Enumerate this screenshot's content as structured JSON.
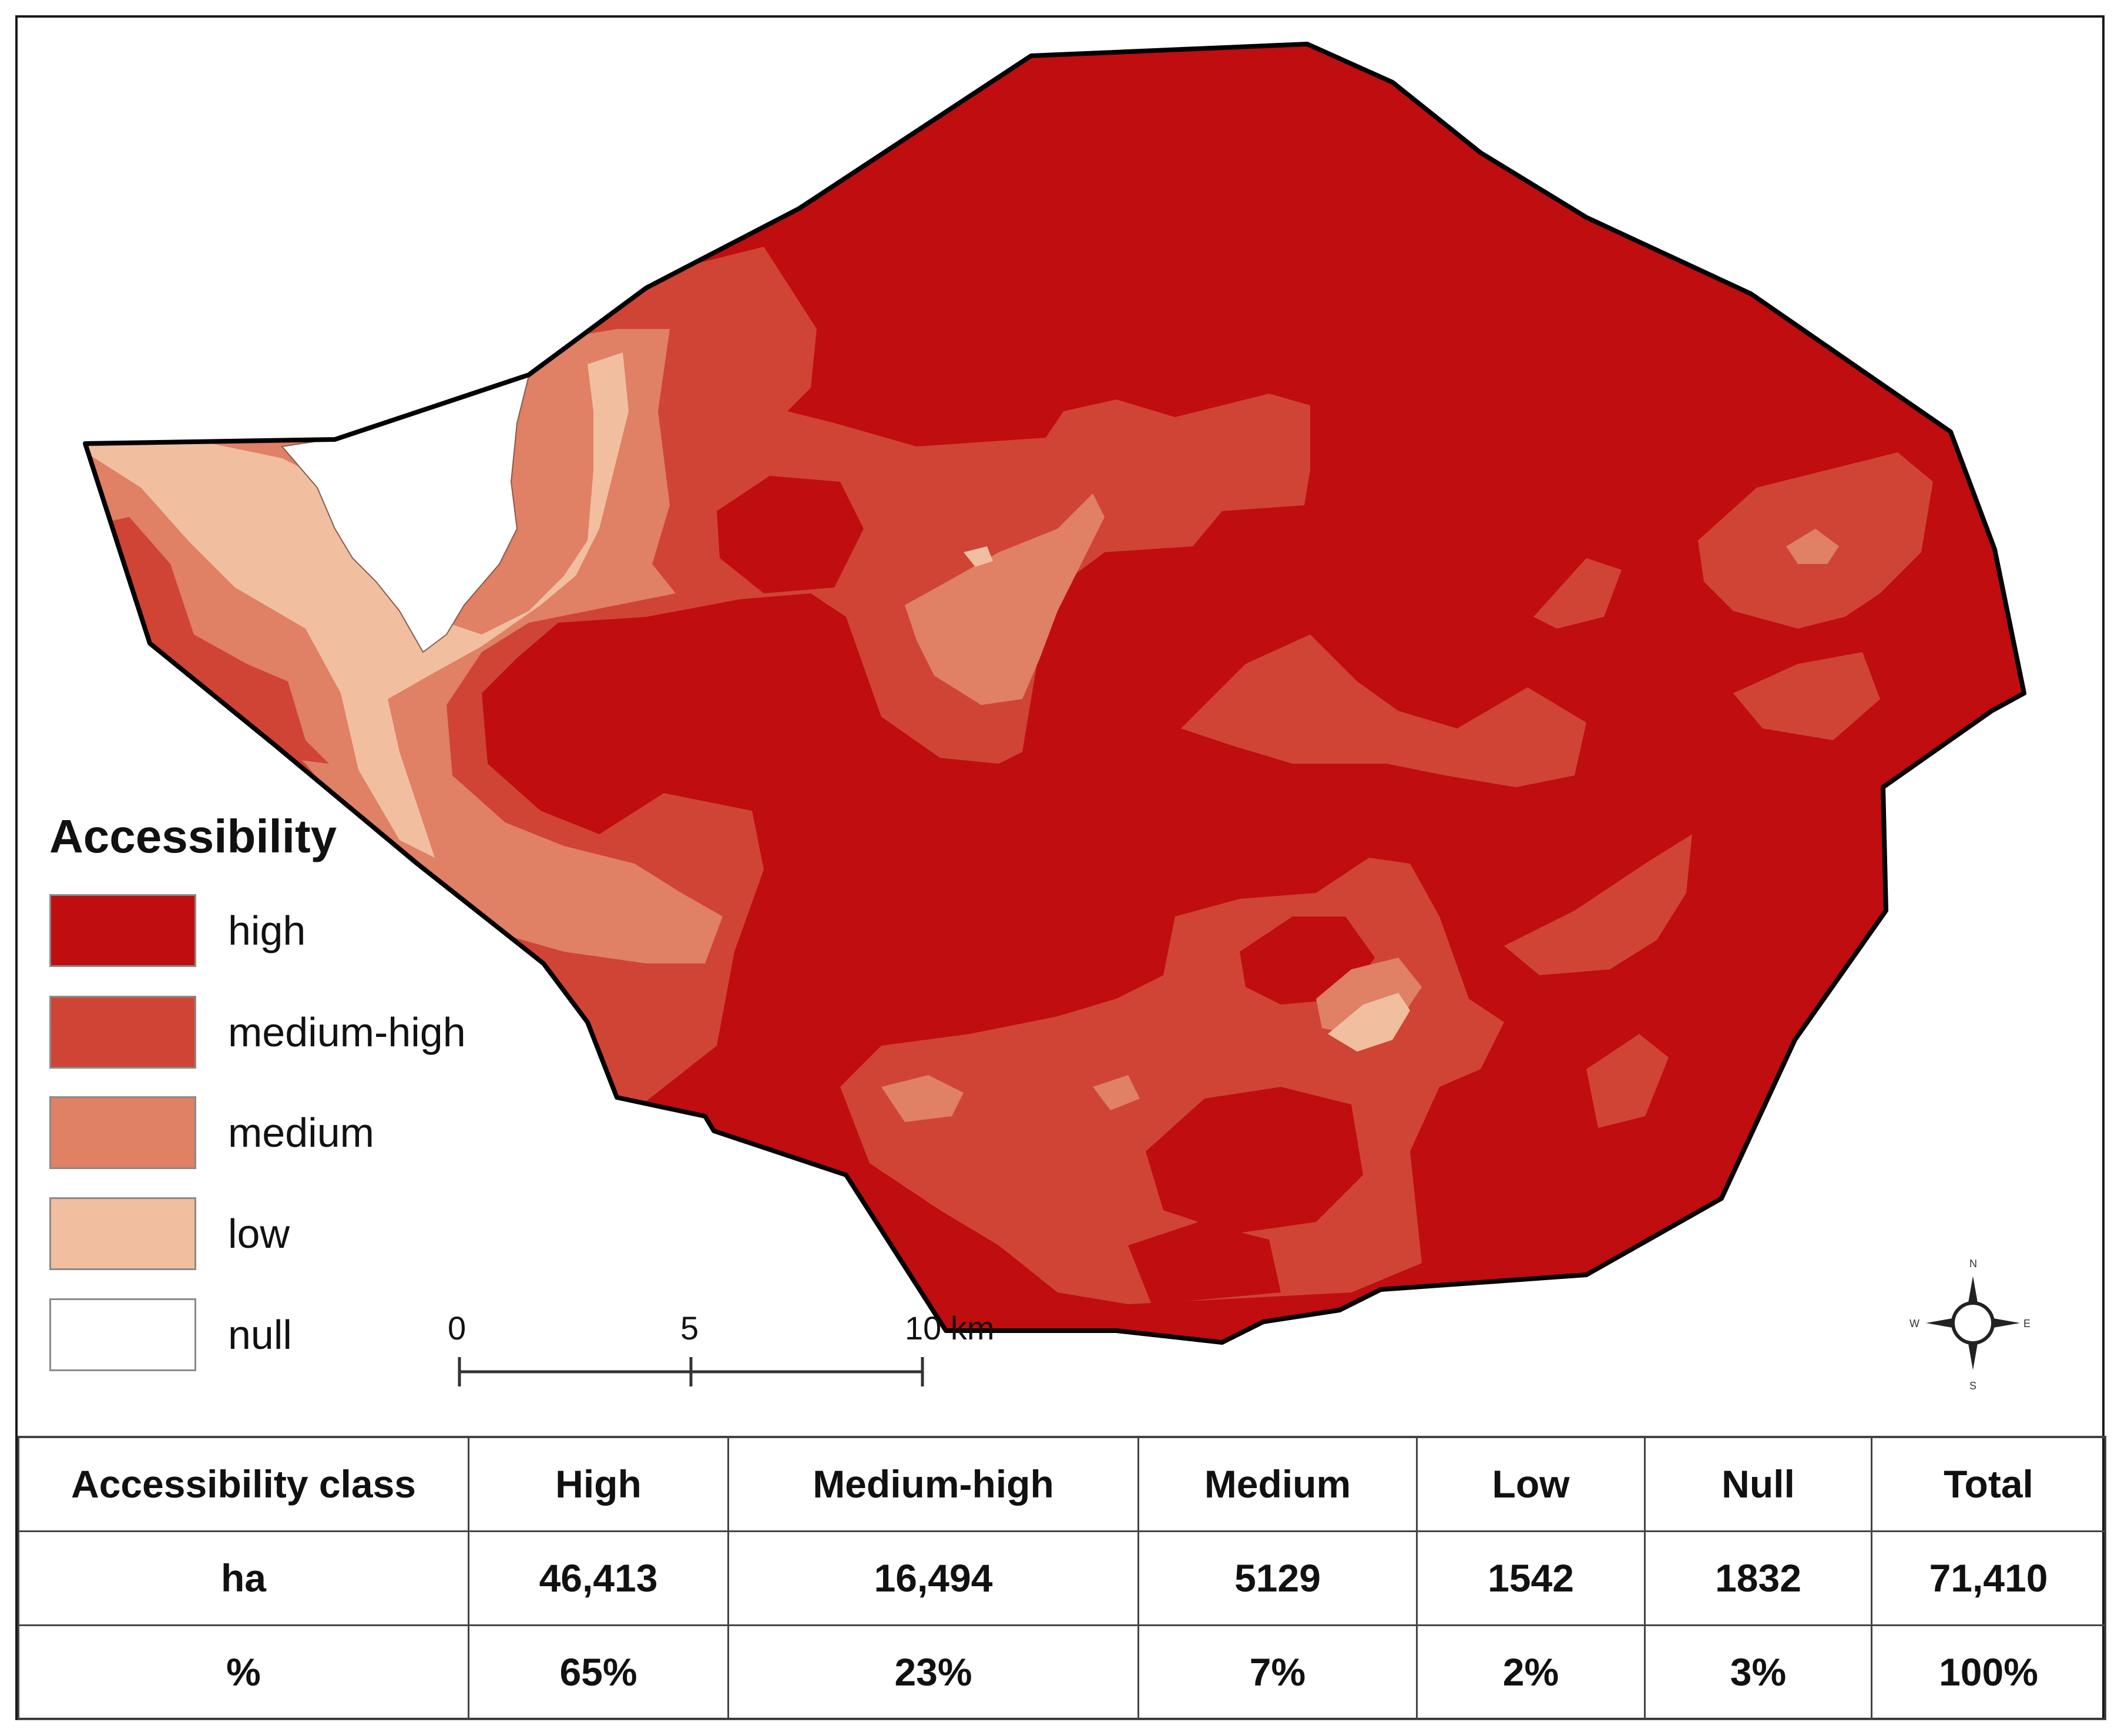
{
  "legend": {
    "title": "Accessibility",
    "items": [
      {
        "label": "high",
        "color": "#c00d10"
      },
      {
        "label": "medium-high",
        "color": "#d04435"
      },
      {
        "label": "medium",
        "color": "#e08065"
      },
      {
        "label": "low",
        "color": "#f1bf9f"
      },
      {
        "label": "null",
        "color": "#ffffff"
      }
    ]
  },
  "scale_bar": {
    "labels": [
      "0",
      "5",
      "10 km"
    ]
  },
  "compass": {
    "icon": "north-arrow-compass-icon",
    "n": "N",
    "s": "S",
    "e": "E",
    "w": "W"
  },
  "table": {
    "header": [
      "Accessibility class",
      "High",
      "Medium-high",
      "Medium",
      "Low",
      "Null",
      "Total"
    ],
    "rows": [
      [
        "ha",
        "46,413",
        "16,494",
        "5129",
        "1542",
        "1832",
        "71,410"
      ],
      [
        "%",
        "65%",
        "23%",
        "7%",
        "2%",
        "3%",
        "100%"
      ]
    ]
  }
}
